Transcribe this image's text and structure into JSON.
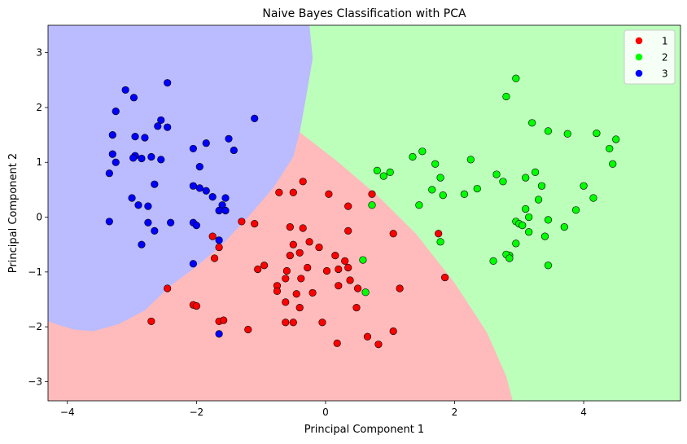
{
  "chart_data": {
    "type": "scatter",
    "title": "Naive Bayes Classification with PCA",
    "xlabel": "Principal Component 1",
    "ylabel": "Principal Component 2",
    "xlim": [
      -4.3,
      5.5
    ],
    "ylim": [
      -3.35,
      3.5
    ],
    "xticks": [
      -4,
      -2,
      0,
      2,
      4
    ],
    "yticks": [
      -3,
      -2,
      -1,
      0,
      1,
      2,
      3
    ],
    "grid": false,
    "legend_position": "top-right",
    "region_colors": {
      "1": "#ffbbbb",
      "2": "#bbffbb",
      "3": "#bbbbff"
    },
    "region_boundaries": {
      "boundary_3_12": [
        [
          -4.3,
          -1.9
        ],
        [
          -4.1,
          -1.98
        ],
        [
          -3.9,
          -2.05
        ],
        [
          -3.6,
          -2.08
        ],
        [
          -3.2,
          -1.95
        ],
        [
          -2.8,
          -1.7
        ],
        [
          -2.4,
          -1.25
        ],
        [
          -2.0,
          -0.9
        ],
        [
          -1.6,
          -0.5
        ],
        [
          -1.2,
          0.0
        ],
        [
          -0.8,
          0.55
        ],
        [
          -0.5,
          1.1
        ],
        [
          -0.4,
          1.55
        ]
      ],
      "boundary_3_2": [
        [
          -0.4,
          1.55
        ],
        [
          -0.3,
          2.2
        ],
        [
          -0.2,
          2.9
        ],
        [
          -0.25,
          3.5
        ]
      ],
      "boundary_1_2": [
        [
          -0.4,
          1.55
        ],
        [
          0.2,
          1.0
        ],
        [
          0.8,
          0.4
        ],
        [
          1.4,
          -0.3
        ],
        [
          2.0,
          -1.2
        ],
        [
          2.5,
          -2.1
        ],
        [
          2.8,
          -2.9
        ],
        [
          2.9,
          -3.35
        ]
      ]
    },
    "series": [
      {
        "name": "1",
        "color": "#ff0000",
        "points": [
          [
            0.72,
            0.42
          ],
          [
            -0.35,
            0.65
          ],
          [
            -0.5,
            0.45
          ],
          [
            0.05,
            0.42
          ],
          [
            -0.72,
            0.45
          ],
          [
            0.35,
            0.2
          ],
          [
            -0.55,
            -0.18
          ],
          [
            -1.3,
            -0.08
          ],
          [
            -1.1,
            -0.12
          ],
          [
            -0.35,
            -0.2
          ],
          [
            0.35,
            -0.25
          ],
          [
            1.75,
            -0.3
          ],
          [
            1.05,
            -0.3
          ],
          [
            -1.75,
            -0.35
          ],
          [
            -1.65,
            -0.55
          ],
          [
            -1.72,
            -0.75
          ],
          [
            -0.5,
            -0.5
          ],
          [
            -0.25,
            -0.45
          ],
          [
            -0.1,
            -0.55
          ],
          [
            -0.4,
            -0.65
          ],
          [
            0.15,
            -0.7
          ],
          [
            -0.55,
            -0.7
          ],
          [
            0.3,
            -0.8
          ],
          [
            -0.95,
            -0.88
          ],
          [
            -1.05,
            -0.95
          ],
          [
            0.2,
            -0.95
          ],
          [
            -0.6,
            -0.98
          ],
          [
            0.35,
            -0.92
          ],
          [
            -0.28,
            -0.92
          ],
          [
            0.02,
            -0.98
          ],
          [
            -0.75,
            -1.25
          ],
          [
            -0.62,
            -1.12
          ],
          [
            -0.38,
            -1.12
          ],
          [
            -0.75,
            -1.35
          ],
          [
            -0.2,
            -1.38
          ],
          [
            -0.45,
            -1.4
          ],
          [
            0.2,
            -1.25
          ],
          [
            0.5,
            -1.3
          ],
          [
            0.38,
            -1.15
          ],
          [
            1.15,
            -1.3
          ],
          [
            1.85,
            -1.1
          ],
          [
            -0.62,
            -1.55
          ],
          [
            -0.4,
            -1.65
          ],
          [
            0.48,
            -1.65
          ],
          [
            -2.45,
            -1.3
          ],
          [
            -2.05,
            -1.6
          ],
          [
            -2.0,
            -1.62
          ],
          [
            -1.65,
            -1.9
          ],
          [
            -1.58,
            -1.88
          ],
          [
            -2.7,
            -1.9
          ],
          [
            -0.62,
            -1.92
          ],
          [
            -0.5,
            -1.92
          ],
          [
            -0.05,
            -1.92
          ],
          [
            -1.2,
            -2.05
          ],
          [
            0.65,
            -2.18
          ],
          [
            1.05,
            -2.08
          ],
          [
            0.18,
            -2.3
          ],
          [
            0.82,
            -2.32
          ]
        ]
      },
      {
        "name": "2",
        "color": "#00ff00",
        "points": [
          [
            2.95,
            2.53
          ],
          [
            2.8,
            2.2
          ],
          [
            3.2,
            1.72
          ],
          [
            3.75,
            1.52
          ],
          [
            3.45,
            1.57
          ],
          [
            4.2,
            1.53
          ],
          [
            4.5,
            1.42
          ],
          [
            4.4,
            1.25
          ],
          [
            1.5,
            1.2
          ],
          [
            1.35,
            1.1
          ],
          [
            2.25,
            1.05
          ],
          [
            4.45,
            0.97
          ],
          [
            1.7,
            0.97
          ],
          [
            0.8,
            0.85
          ],
          [
            1.0,
            0.82
          ],
          [
            3.25,
            0.82
          ],
          [
            0.9,
            0.75
          ],
          [
            1.78,
            0.72
          ],
          [
            2.65,
            0.78
          ],
          [
            3.1,
            0.72
          ],
          [
            2.75,
            0.65
          ],
          [
            3.35,
            0.57
          ],
          [
            4.0,
            0.57
          ],
          [
            1.65,
            0.5
          ],
          [
            2.35,
            0.52
          ],
          [
            1.82,
            0.4
          ],
          [
            2.15,
            0.42
          ],
          [
            4.15,
            0.35
          ],
          [
            3.3,
            0.32
          ],
          [
            0.72,
            0.22
          ],
          [
            1.45,
            0.22
          ],
          [
            3.1,
            0.15
          ],
          [
            3.88,
            0.13
          ],
          [
            3.15,
            0.0
          ],
          [
            2.95,
            -0.08
          ],
          [
            3.45,
            -0.05
          ],
          [
            3.0,
            -0.12
          ],
          [
            3.05,
            -0.15
          ],
          [
            3.7,
            -0.18
          ],
          [
            3.15,
            -0.27
          ],
          [
            3.4,
            -0.35
          ],
          [
            1.78,
            -0.45
          ],
          [
            2.95,
            -0.48
          ],
          [
            2.85,
            -0.7
          ],
          [
            2.8,
            -0.68
          ],
          [
            2.85,
            -0.75
          ],
          [
            0.58,
            -0.78
          ],
          [
            2.6,
            -0.8
          ],
          [
            3.45,
            -0.88
          ],
          [
            0.62,
            -1.37
          ]
        ]
      },
      {
        "name": "3",
        "color": "#0000ff",
        "points": [
          [
            -2.45,
            2.45
          ],
          [
            -3.1,
            2.32
          ],
          [
            -2.97,
            2.18
          ],
          [
            -1.1,
            1.8
          ],
          [
            -3.25,
            1.93
          ],
          [
            -2.55,
            1.77
          ],
          [
            -2.6,
            1.66
          ],
          [
            -2.45,
            1.64
          ],
          [
            -3.3,
            1.5
          ],
          [
            -2.95,
            1.47
          ],
          [
            -2.8,
            1.45
          ],
          [
            -1.5,
            1.43
          ],
          [
            -1.85,
            1.35
          ],
          [
            -2.05,
            1.25
          ],
          [
            -1.42,
            1.22
          ],
          [
            -3.3,
            1.15
          ],
          [
            -2.95,
            1.12
          ],
          [
            -2.7,
            1.1
          ],
          [
            -2.98,
            1.08
          ],
          [
            -2.85,
            1.07
          ],
          [
            -2.55,
            1.05
          ],
          [
            -3.25,
            1.0
          ],
          [
            -1.95,
            0.92
          ],
          [
            -3.35,
            0.8
          ],
          [
            -2.05,
            0.57
          ],
          [
            -1.95,
            0.53
          ],
          [
            -1.85,
            0.48
          ],
          [
            -2.65,
            0.6
          ],
          [
            -1.75,
            0.37
          ],
          [
            -3.0,
            0.35
          ],
          [
            -1.55,
            0.35
          ],
          [
            -2.9,
            0.22
          ],
          [
            -1.6,
            0.22
          ],
          [
            -2.75,
            0.2
          ],
          [
            -1.65,
            0.12
          ],
          [
            -1.55,
            0.12
          ],
          [
            -3.35,
            -0.08
          ],
          [
            -2.75,
            -0.1
          ],
          [
            -2.4,
            -0.1
          ],
          [
            -2.05,
            -0.1
          ],
          [
            -2.0,
            -0.15
          ],
          [
            -2.65,
            -0.25
          ],
          [
            -1.65,
            -0.42
          ],
          [
            -2.85,
            -0.5
          ],
          [
            -2.05,
            -0.85
          ],
          [
            -1.65,
            -2.13
          ]
        ]
      }
    ]
  }
}
